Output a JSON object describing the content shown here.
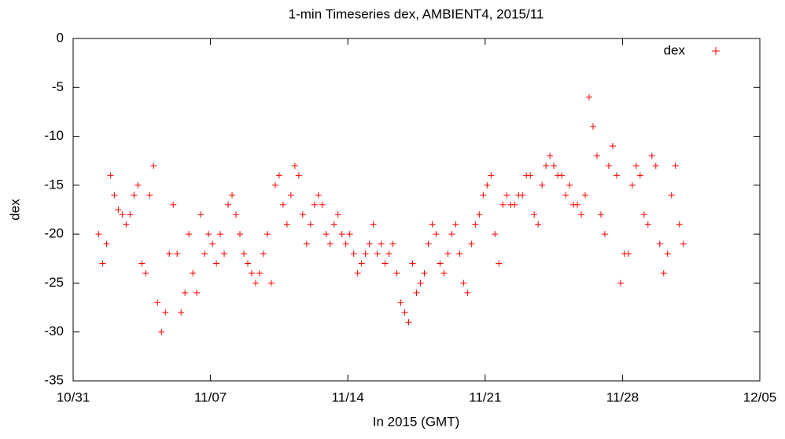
{
  "chart_data": {
    "type": "scatter",
    "title": "1-min Timeseries dex, AMBIENT4, 2015/11",
    "xlabel": "In 2015 (GMT)",
    "ylabel": "dex",
    "xlim": [
      0,
      35
    ],
    "xticks": [
      {
        "value": 0,
        "label": "10/31"
      },
      {
        "value": 7,
        "label": "11/07"
      },
      {
        "value": 14,
        "label": "11/14"
      },
      {
        "value": 21,
        "label": "11/21"
      },
      {
        "value": 28,
        "label": "11/28"
      },
      {
        "value": 35,
        "label": "12/05"
      }
    ],
    "ylim": [
      -35,
      0
    ],
    "yticks": [
      -35,
      -30,
      -25,
      -20,
      -15,
      -10,
      -5,
      0
    ],
    "legend": "top-right",
    "series": [
      {
        "name": "dex",
        "color": "#ff0000",
        "x": [
          1.3,
          1.5,
          1.7,
          1.9,
          2.1,
          2.3,
          2.5,
          2.7,
          2.9,
          3.1,
          3.3,
          3.5,
          3.7,
          3.9,
          4.1,
          4.3,
          4.5,
          4.7,
          4.9,
          5.1,
          5.3,
          5.5,
          5.7,
          5.9,
          6.1,
          6.3,
          6.5,
          6.7,
          6.9,
          7.1,
          7.3,
          7.5,
          7.7,
          7.9,
          8.1,
          8.3,
          8.5,
          8.7,
          8.9,
          9.1,
          9.3,
          9.5,
          9.7,
          9.9,
          10.1,
          10.3,
          10.5,
          10.7,
          10.9,
          11.1,
          11.3,
          11.5,
          11.7,
          11.9,
          12.1,
          12.3,
          12.5,
          12.7,
          12.9,
          13.1,
          13.3,
          13.5,
          13.7,
          13.9,
          14.1,
          14.3,
          14.5,
          14.7,
          14.9,
          15.1,
          15.3,
          15.5,
          15.7,
          15.9,
          16.1,
          16.3,
          16.5,
          16.7,
          16.9,
          17.1,
          17.3,
          17.5,
          17.7,
          17.9,
          18.1,
          18.3,
          18.5,
          18.7,
          18.9,
          19.1,
          19.3,
          19.5,
          19.7,
          19.9,
          20.1,
          20.3,
          20.5,
          20.7,
          20.9,
          21.1,
          21.3,
          21.5,
          21.7,
          21.9,
          22.1,
          22.3,
          22.5,
          22.7,
          22.9,
          23.1,
          23.3,
          23.5,
          23.7,
          23.9,
          24.1,
          24.3,
          24.5,
          24.7,
          24.9,
          25.1,
          25.3,
          25.5,
          25.7,
          25.9,
          26.1,
          26.3,
          26.5,
          26.7,
          26.9,
          27.1,
          27.3,
          27.5,
          27.7,
          27.9,
          28.1,
          28.3,
          28.5,
          28.7,
          28.9,
          29.1,
          29.3,
          29.5,
          29.7,
          29.9,
          30.1,
          30.3,
          30.5,
          30.7,
          30.9,
          31.1
        ],
        "values": [
          -20,
          -23,
          -21,
          -14,
          -16,
          -17.5,
          -18,
          -19,
          -18,
          -16,
          -15,
          -23,
          -24,
          -16,
          -13,
          -27,
          -30,
          -28,
          -22,
          -17,
          -22,
          -28,
          -26,
          -20,
          -24,
          -26,
          -18,
          -22,
          -20,
          -21,
          -23,
          -20,
          -22,
          -17,
          -16,
          -18,
          -20,
          -22,
          -23,
          -24,
          -25,
          -24,
          -22,
          -20,
          -25,
          -15,
          -14,
          -17,
          -19,
          -16,
          -13,
          -14,
          -18,
          -21,
          -19,
          -17,
          -16,
          -17,
          -20,
          -21,
          -19,
          -18,
          -20,
          -21,
          -20,
          -22,
          -24,
          -23,
          -22,
          -21,
          -19,
          -22,
          -21,
          -23,
          -22,
          -21,
          -24,
          -27,
          -28,
          -29,
          -23,
          -26,
          -25,
          -24,
          -21,
          -19,
          -20,
          -23,
          -24,
          -22,
          -20,
          -19,
          -22,
          -25,
          -26,
          -21,
          -19,
          -18,
          -16,
          -15,
          -14,
          -20,
          -23,
          -17,
          -16,
          -17,
          -17,
          -16,
          -16,
          -14,
          -14,
          -18,
          -19,
          -15,
          -13,
          -12,
          -13,
          -14,
          -14,
          -16,
          -15,
          -17,
          -17,
          -18,
          -16,
          -6,
          -9,
          -12,
          -18,
          -20,
          -13,
          -11,
          -14,
          -25,
          -22,
          -22,
          -15,
          -13,
          -14,
          -18,
          -19,
          -12,
          -13,
          -21,
          -24,
          -22,
          -16,
          -13,
          -19,
          -21
        ]
      }
    ]
  }
}
